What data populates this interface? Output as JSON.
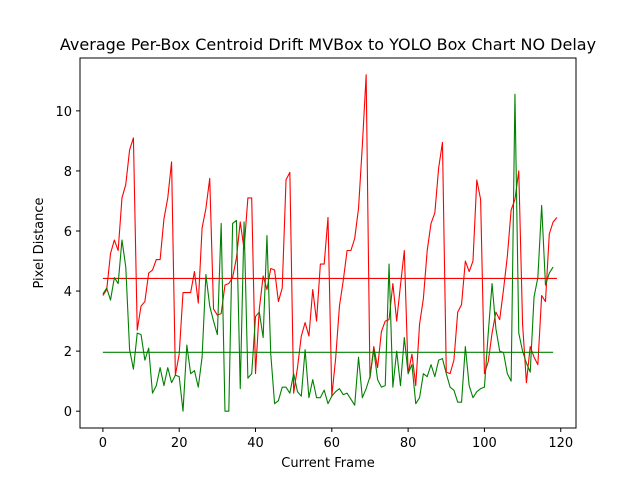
{
  "chart_data": {
    "type": "line",
    "title": "Average Per-Box Centroid Drift MVBox to YOLO Box Chart NO Delay",
    "xlabel": "Current Frame",
    "ylabel": "Pixel Distance",
    "xlim": [
      -6,
      124
    ],
    "ylim": [
      -0.56,
      11.76
    ],
    "xticks": [
      0,
      20,
      40,
      60,
      80,
      100,
      120
    ],
    "yticks": [
      0,
      2,
      4,
      6,
      8,
      10
    ],
    "grid": false,
    "series": [
      {
        "color": "#ff0000",
        "values": [
          3.85,
          4.05,
          5.25,
          5.7,
          5.35,
          7.1,
          7.55,
          8.7,
          9.1,
          2.7,
          3.5,
          3.65,
          4.6,
          4.7,
          5.05,
          5.05,
          6.4,
          7.1,
          8.3,
          1.2,
          1.9,
          3.95,
          3.95,
          3.95,
          4.65,
          3.6,
          6.1,
          6.75,
          7.75,
          3.4,
          3.2,
          3.25,
          4.2,
          4.25,
          4.45,
          5.1,
          6.3,
          5.4,
          7.1,
          7.1,
          1.25,
          3.4,
          4.5,
          4.05,
          4.75,
          4.7,
          3.65,
          4.1,
          7.7,
          7.95,
          0.6,
          1.45,
          2.5,
          2.95,
          2.5,
          4.05,
          3.0,
          4.9,
          4.9,
          6.45,
          0.5,
          1.75,
          3.5,
          4.35,
          5.35,
          5.35,
          5.75,
          6.75,
          8.85,
          11.2,
          1.1,
          2.15,
          1.45,
          2.65,
          3.0,
          3.05,
          4.25,
          3.0,
          4.2,
          5.35,
          1.25,
          1.9,
          0.85,
          2.9,
          3.75,
          5.35,
          6.25,
          6.6,
          8.1,
          8.95,
          1.3,
          1.25,
          1.7,
          3.3,
          3.55,
          5.0,
          4.65,
          5.0,
          7.7,
          7.05,
          1.25,
          1.65,
          2.6,
          3.3,
          3.05,
          4.05,
          5.15,
          6.7,
          7.05,
          8.0,
          2.9,
          0.95,
          2.15,
          1.8,
          1.55,
          3.85,
          3.65,
          5.9,
          6.3,
          6.45
        ],
        "mean": 4.42
      },
      {
        "color": "#008000",
        "values": [
          3.9,
          4.1,
          3.7,
          4.45,
          4.25,
          5.7,
          4.8,
          2.05,
          1.4,
          2.6,
          2.55,
          1.7,
          2.1,
          0.6,
          0.85,
          1.45,
          0.85,
          1.45,
          0.95,
          1.2,
          1.15,
          0.0,
          2.2,
          1.25,
          1.35,
          0.8,
          1.8,
          4.55,
          3.5,
          3.0,
          2.55,
          6.25,
          0.0,
          0.0,
          6.25,
          6.35,
          0.75,
          6.3,
          1.1,
          1.25,
          3.15,
          3.3,
          2.45,
          5.85,
          1.9,
          0.25,
          0.35,
          0.8,
          0.8,
          0.6,
          1.25,
          0.65,
          0.5,
          2.05,
          0.45,
          1.05,
          0.45,
          0.45,
          0.7,
          0.25,
          0.5,
          0.65,
          0.75,
          0.55,
          0.6,
          0.4,
          0.2,
          1.8,
          0.45,
          0.75,
          1.15,
          2.05,
          1.05,
          0.8,
          0.85,
          4.9,
          0.8,
          2.0,
          0.85,
          2.45,
          1.25,
          1.55,
          0.25,
          0.45,
          1.25,
          1.15,
          1.55,
          1.15,
          1.7,
          1.75,
          1.25,
          0.8,
          0.7,
          0.3,
          0.3,
          2.15,
          0.85,
          0.45,
          0.65,
          0.75,
          0.8,
          2.6,
          4.25,
          2.75,
          2.0,
          1.95,
          1.25,
          1.0,
          10.55,
          2.6,
          2.0,
          1.6,
          1.3,
          3.8,
          4.45,
          6.85,
          4.2,
          4.6,
          4.8
        ],
        "mean": 1.96
      }
    ]
  }
}
